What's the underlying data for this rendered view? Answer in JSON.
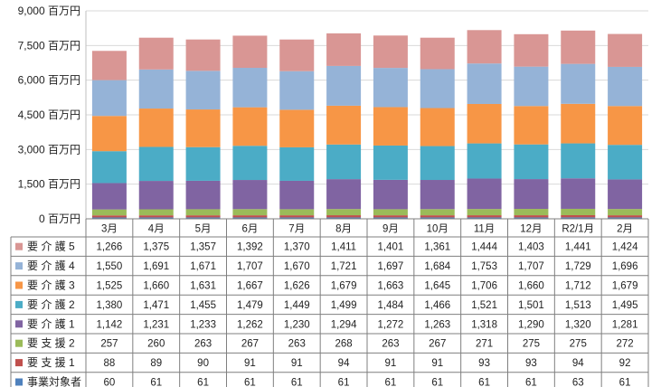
{
  "chart_data": {
    "type": "bar",
    "stacked": true,
    "categories": [
      "3月",
      "4月",
      "5月",
      "6月",
      "7月",
      "8月",
      "9月",
      "10月",
      "11月",
      "12月",
      "R2/1月",
      "2月"
    ],
    "y_unit": "百万円",
    "ylim": [
      0,
      9000
    ],
    "yticks": [
      0,
      1500,
      3000,
      4500,
      6000,
      7500,
      9000
    ],
    "ytick_labels": [
      "0 百万円",
      "1,500 百万円",
      "3,000 百万円",
      "4,500 百万円",
      "6,000 百万円",
      "7,500 百万円",
      "9,000 百万円"
    ],
    "grid": true,
    "legend_placement": "data-table-left",
    "series": [
      {
        "name": "事業対象者",
        "color": "#4f81bd",
        "values": [
          60,
          61,
          61,
          61,
          61,
          61,
          61,
          61,
          61,
          61,
          63,
          61
        ],
        "labels": [
          "60",
          "61",
          "61",
          "61",
          "61",
          "61",
          "61",
          "61",
          "61",
          "61",
          "63",
          "61"
        ]
      },
      {
        "name": "要 支 援 1",
        "color": "#c0504d",
        "values": [
          88,
          89,
          90,
          91,
          91,
          94,
          91,
          91,
          93,
          93,
          94,
          92
        ],
        "labels": [
          "88",
          "89",
          "90",
          "91",
          "91",
          "94",
          "91",
          "91",
          "93",
          "93",
          "94",
          "92"
        ]
      },
      {
        "name": "要 支 援 2",
        "color": "#9bbb59",
        "values": [
          257,
          260,
          263,
          267,
          263,
          268,
          263,
          267,
          271,
          275,
          275,
          272
        ],
        "labels": [
          "257",
          "260",
          "263",
          "267",
          "263",
          "268",
          "263",
          "267",
          "271",
          "275",
          "275",
          "272"
        ]
      },
      {
        "name": "要 介 護 1",
        "color": "#8064a2",
        "values": [
          1142,
          1231,
          1233,
          1262,
          1230,
          1294,
          1272,
          1263,
          1318,
          1290,
          1320,
          1281
        ],
        "labels": [
          "1,142",
          "1,231",
          "1,233",
          "1,262",
          "1,230",
          "1,294",
          "1,272",
          "1,263",
          "1,318",
          "1,290",
          "1,320",
          "1,281"
        ]
      },
      {
        "name": "要 介 護 2",
        "color": "#4bacc6",
        "values": [
          1380,
          1471,
          1455,
          1479,
          1449,
          1499,
          1484,
          1466,
          1521,
          1501,
          1513,
          1495
        ],
        "labels": [
          "1,380",
          "1,471",
          "1,455",
          "1,479",
          "1,449",
          "1,499",
          "1,484",
          "1,466",
          "1,521",
          "1,501",
          "1,513",
          "1,495"
        ]
      },
      {
        "name": "要 介 護 3",
        "color": "#f79646",
        "values": [
          1525,
          1660,
          1631,
          1667,
          1626,
          1679,
          1663,
          1645,
          1706,
          1660,
          1712,
          1679
        ],
        "labels": [
          "1,525",
          "1,660",
          "1,631",
          "1,667",
          "1,626",
          "1,679",
          "1,663",
          "1,645",
          "1,706",
          "1,660",
          "1,712",
          "1,679"
        ]
      },
      {
        "name": "要 介 護 4",
        "color": "#95b3d7",
        "values": [
          1550,
          1691,
          1671,
          1707,
          1670,
          1721,
          1697,
          1684,
          1753,
          1707,
          1729,
          1696
        ],
        "labels": [
          "1,550",
          "1,691",
          "1,671",
          "1,707",
          "1,670",
          "1,721",
          "1,697",
          "1,684",
          "1,753",
          "1,707",
          "1,729",
          "1,696"
        ]
      },
      {
        "name": "要 介 護 5",
        "color": "#d99694",
        "values": [
          1266,
          1375,
          1357,
          1392,
          1370,
          1411,
          1401,
          1361,
          1444,
          1403,
          1441,
          1424
        ],
        "labels": [
          "1,266",
          "1,375",
          "1,357",
          "1,392",
          "1,370",
          "1,411",
          "1,401",
          "1,361",
          "1,444",
          "1,403",
          "1,441",
          "1,424"
        ]
      }
    ]
  }
}
